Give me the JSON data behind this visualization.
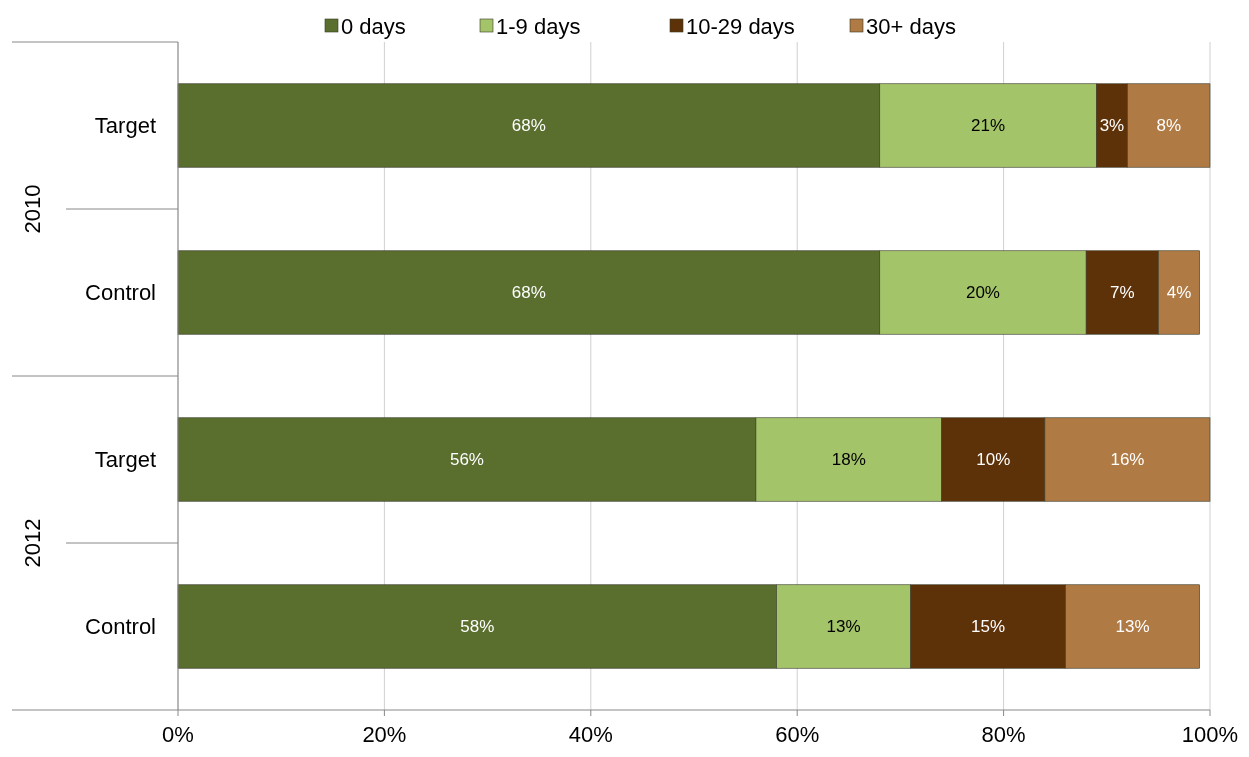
{
  "chart_data": {
    "type": "bar",
    "orientation": "horizontal",
    "stacked": true,
    "categories": [
      "Target",
      "Control",
      "Target",
      "Control"
    ],
    "series": [
      {
        "name": "0 days",
        "color": "#5a6e2e",
        "values": [
          68,
          68,
          56,
          58
        ],
        "value_labels": [
          "68%",
          "68%",
          "56%",
          "58%"
        ]
      },
      {
        "name": "1-9 days",
        "color": "#a4c46a",
        "values": [
          21,
          20,
          18,
          13
        ],
        "value_labels": [
          "21%",
          "20%",
          "18%",
          "13%"
        ]
      },
      {
        "name": "10-29 days",
        "color": "#5e3208",
        "values": [
          3,
          7,
          10,
          15
        ],
        "value_labels": [
          "3%",
          "7%",
          "10%",
          "15%"
        ]
      },
      {
        "name": "30+ days",
        "color": "#b07a44",
        "values": [
          8,
          4,
          16,
          13
        ],
        "value_labels": [
          "8%",
          "4%",
          "16%",
          "13%"
        ]
      }
    ],
    "xlim": [
      0,
      100
    ],
    "xticks": [
      {
        "value": 0,
        "label": "0%"
      },
      {
        "value": 20,
        "label": "20%"
      },
      {
        "value": 40,
        "label": "40%"
      },
      {
        "value": 60,
        "label": "60%"
      },
      {
        "value": 80,
        "label": "80%"
      },
      {
        "value": 100,
        "label": "100%"
      }
    ],
    "annotations": [
      "2010",
      "2012"
    ],
    "grid": "x",
    "legend": "top"
  }
}
